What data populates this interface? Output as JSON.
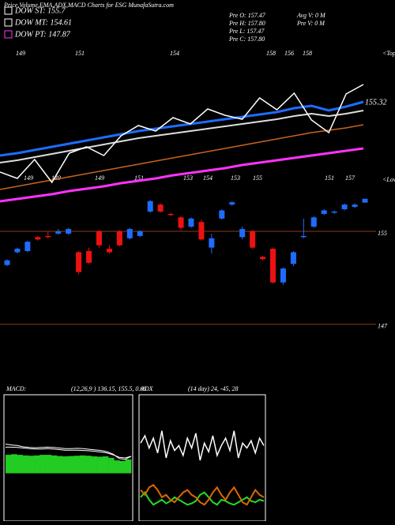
{
  "header": {
    "title": "Price,Volume,EMA,ADX,MACD Charts for ESG MunafaSutra.com"
  },
  "legend": [
    {
      "label": "DOW ST: 155.7",
      "color": "#ffffff"
    },
    {
      "label": "DOW MT: 154.61",
      "color": "#ffffff"
    },
    {
      "label": "DOW PT: 147.87",
      "color": "#ff33ff"
    }
  ],
  "stats": [
    "Pre  O: 157.47",
    "Pre  H: 157.80",
    "Pre  L: 157.47",
    "Pre  C: 157.80",
    "Avg V: 0  M",
    "Pre  V: 0  M"
  ],
  "chart_data": [
    {
      "type": "ema",
      "ylim": [
        140,
        160
      ],
      "top_labels": [
        149,
        151,
        154,
        158,
        156,
        158
      ],
      "bottom_labels": [
        149,
        149,
        149,
        151,
        153,
        154,
        153,
        155,
        151,
        157
      ],
      "tops_label": "<Tops",
      "lows_label": "<Lows",
      "last_label": "155.32",
      "series": [
        {
          "name": "price",
          "color": "#ffffff",
          "values": [
            144.2,
            143.4,
            145.8,
            142.9,
            146.6,
            147.4,
            146.3,
            148.8,
            150.1,
            149.4,
            151.1,
            150.3,
            152.2,
            151.4,
            150.9,
            153.6,
            152.1,
            154.2,
            150.8,
            149.2,
            154.1,
            155.3
          ]
        },
        {
          "name": "ema-short",
          "color": "#1e6cff",
          "values": [
            146.3,
            146.6,
            147.0,
            147.4,
            147.8,
            148.2,
            148.6,
            149.0,
            149.4,
            149.7,
            150.0,
            150.3,
            150.6,
            150.9,
            151.2,
            151.5,
            151.8,
            152.3,
            152.6,
            152.0,
            152.5,
            153.1
          ]
        },
        {
          "name": "ema-mid",
          "color": "#dddddd",
          "values": [
            145.4,
            145.7,
            146.1,
            146.5,
            146.9,
            147.3,
            147.7,
            148.1,
            148.5,
            148.8,
            149.1,
            149.4,
            149.7,
            150.0,
            150.3,
            150.6,
            150.9,
            151.3,
            151.6,
            151.3,
            151.6,
            152.0
          ]
        },
        {
          "name": "ema-long",
          "color": "#c8641e",
          "values": [
            142.0,
            142.4,
            142.8,
            143.2,
            143.6,
            144.0,
            144.4,
            144.8,
            145.2,
            145.6,
            146.0,
            146.4,
            146.8,
            147.2,
            147.6,
            148.0,
            148.4,
            148.8,
            149.2,
            149.5,
            149.8,
            150.2
          ]
        },
        {
          "name": "ema-pt",
          "color": "#ff33ff",
          "values": [
            140.5,
            140.8,
            141.1,
            141.4,
            141.8,
            142.1,
            142.4,
            142.8,
            143.1,
            143.4,
            143.8,
            144.1,
            144.4,
            144.7,
            145.1,
            145.4,
            145.7,
            146.0,
            146.3,
            146.6,
            146.9,
            147.2
          ]
        }
      ]
    },
    {
      "type": "candlestick",
      "ylim": [
        142.3,
        158.6
      ],
      "yticks": [
        155,
        147
      ],
      "up_color": "#1e6cff",
      "down_color": "#ee1111",
      "candles": [
        [
          152.1,
          152.6,
          152.0,
          152.5
        ],
        [
          153.2,
          153.6,
          153.1,
          153.5
        ],
        [
          153.3,
          154.2,
          153.2,
          154.1
        ],
        [
          154.5,
          154.6,
          154.2,
          154.3
        ],
        [
          154.6,
          155.0,
          154.4,
          154.5
        ],
        [
          154.8,
          155.2,
          154.7,
          155.0
        ],
        [
          154.8,
          155.3,
          154.7,
          155.2
        ],
        [
          153.2,
          153.3,
          151.3,
          151.5
        ],
        [
          153.3,
          153.6,
          152.2,
          152.3
        ],
        [
          155.0,
          155.1,
          153.6,
          153.8
        ],
        [
          153.5,
          153.8,
          153.1,
          153.2
        ],
        [
          155.0,
          155.1,
          153.7,
          153.8
        ],
        [
          154.4,
          155.3,
          154.3,
          155.2
        ],
        [
          154.6,
          155.1,
          154.5,
          155.0
        ],
        [
          156.7,
          157.7,
          156.6,
          157.6
        ],
        [
          157.3,
          157.4,
          156.6,
          156.7
        ],
        [
          156.5,
          156.6,
          156.3,
          156.4
        ],
        [
          156.2,
          156.3,
          155.1,
          155.3
        ],
        [
          155.4,
          156.2,
          155.3,
          156.1
        ],
        [
          155.8,
          156.0,
          154.2,
          154.3
        ],
        [
          153.6,
          154.8,
          153.1,
          154.4
        ],
        [
          156.1,
          156.9,
          156.0,
          156.8
        ],
        [
          157.3,
          157.6,
          157.2,
          157.5
        ],
        [
          154.5,
          155.4,
          154.3,
          155.2
        ],
        [
          155.0,
          155.1,
          153.5,
          153.6
        ],
        [
          152.8,
          152.9,
          152.5,
          152.6
        ],
        [
          153.5,
          153.6,
          150.5,
          150.6
        ],
        [
          150.6,
          151.9,
          150.4,
          151.8
        ],
        [
          152.2,
          153.3,
          152.0,
          153.2
        ],
        [
          154.5,
          156.1,
          154.4,
          154.6
        ],
        [
          155.4,
          156.3,
          155.3,
          156.2
        ],
        [
          156.5,
          156.9,
          156.4,
          156.8
        ],
        [
          156.6,
          156.8,
          156.5,
          156.7
        ],
        [
          156.9,
          157.4,
          156.8,
          157.3
        ],
        [
          157.1,
          157.4,
          157.0,
          157.3
        ],
        [
          157.47,
          157.8,
          157.47,
          157.8
        ]
      ]
    },
    {
      "type": "macd",
      "label": "MACD:",
      "params": "(12,26,9 ) 136.15, 155.5, 0.68",
      "ylim": [
        -1.5,
        2.5
      ],
      "histogram": {
        "color": "#22cc22",
        "values": [
          0.6,
          0.62,
          0.6,
          0.58,
          0.57,
          0.58,
          0.6,
          0.6,
          0.58,
          0.56,
          0.55,
          0.56,
          0.57,
          0.58,
          0.57,
          0.55,
          0.54,
          0.55,
          0.5,
          0.42,
          0.4,
          0.45
        ]
      },
      "series": [
        {
          "name": "macd",
          "color": "#ffffff",
          "values": [
            0.95,
            0.92,
            0.9,
            0.86,
            0.84,
            0.83,
            0.84,
            0.85,
            0.84,
            0.82,
            0.8,
            0.8,
            0.81,
            0.8,
            0.78,
            0.76,
            0.74,
            0.7,
            0.62,
            0.48,
            0.45,
            0.55
          ]
        },
        {
          "name": "signal",
          "color": "#ffffff",
          "values": [
            0.85,
            0.85,
            0.84,
            0.82,
            0.8,
            0.79,
            0.79,
            0.8,
            0.79,
            0.77,
            0.75,
            0.75,
            0.75,
            0.74,
            0.73,
            0.71,
            0.69,
            0.66,
            0.6,
            0.52,
            0.5,
            0.55
          ]
        }
      ]
    },
    {
      "type": "adx",
      "label": "ADX",
      "params": "(14 day) 24, -45, 28",
      "ylim": [
        0,
        100
      ],
      "series": [
        {
          "name": "adx",
          "color": "#ffffff",
          "values": [
            62,
            68,
            58,
            66,
            54,
            72,
            50,
            64,
            56,
            60,
            52,
            66,
            58,
            70,
            48,
            62,
            55,
            68,
            52,
            60,
            66,
            56,
            72,
            50,
            62,
            58,
            64,
            54,
            66,
            60
          ]
        },
        {
          "name": "plus-di",
          "color": "#22dd22",
          "values": [
            18,
            22,
            16,
            12,
            14,
            16,
            13,
            15,
            18,
            16,
            14,
            12,
            13,
            15,
            20,
            22,
            18,
            14,
            12,
            16,
            15,
            13,
            12,
            14,
            16,
            18,
            15,
            14,
            16,
            15
          ]
        },
        {
          "name": "minus-di",
          "color": "#dd6600",
          "values": [
            24,
            20,
            26,
            28,
            24,
            18,
            20,
            16,
            14,
            18,
            22,
            24,
            20,
            18,
            14,
            12,
            16,
            22,
            26,
            20,
            16,
            22,
            26,
            20,
            14,
            12,
            18,
            24,
            20,
            18
          ]
        }
      ]
    }
  ]
}
